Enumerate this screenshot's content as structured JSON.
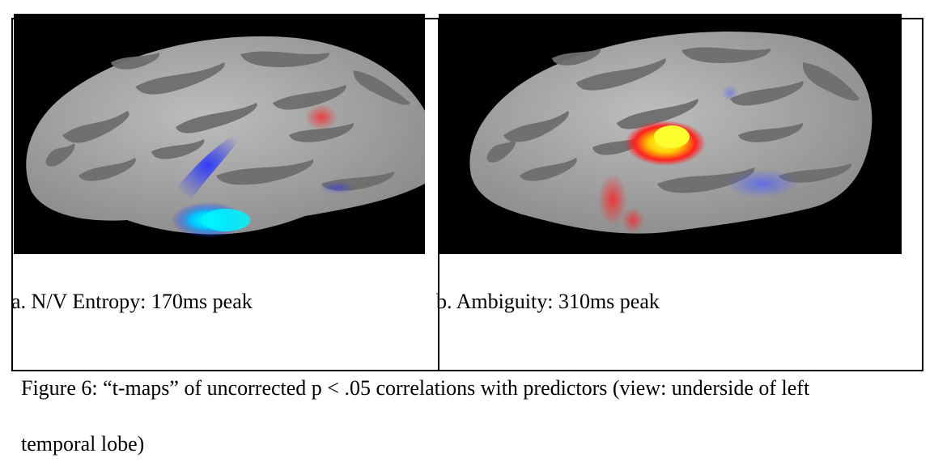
{
  "panels": [
    {
      "caption": "a. N/V Entropy: 170ms peak",
      "activations": [
        "blue-cyan",
        "red"
      ]
    },
    {
      "caption": "b. Ambiguity: 310ms peak",
      "activations": [
        "red-yellow",
        "blue"
      ]
    }
  ],
  "figure_caption": {
    "line1": "Figure 6: “t-maps” of uncorrected p < .05 correlations with predictors (view: underside of left",
    "line2": "temporal lobe)"
  },
  "colors": {
    "background": "#000000",
    "brain_light": "#a9a9a9",
    "brain_dark": "#6a6a6a",
    "negative": "#2233ff",
    "negative_peak": "#00f0ff",
    "positive": "#ff1a1a",
    "positive_peak": "#ffff00"
  }
}
